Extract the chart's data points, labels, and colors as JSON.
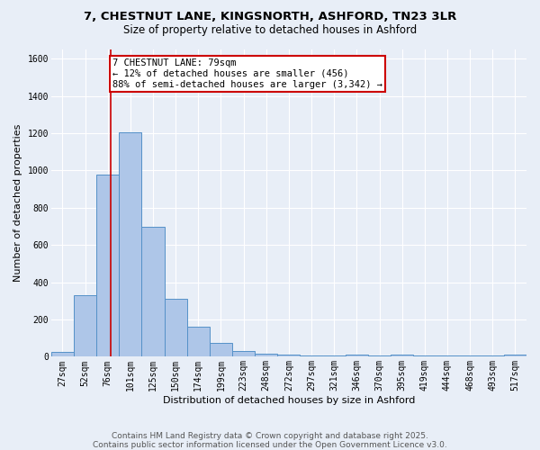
{
  "title_line1": "7, CHESTNUT LANE, KINGSNORTH, ASHFORD, TN23 3LR",
  "title_line2": "Size of property relative to detached houses in Ashford",
  "xlabel": "Distribution of detached houses by size in Ashford",
  "ylabel": "Number of detached properties",
  "categories": [
    "27sqm",
    "52sqm",
    "76sqm",
    "101sqm",
    "125sqm",
    "150sqm",
    "174sqm",
    "199sqm",
    "223sqm",
    "248sqm",
    "272sqm",
    "297sqm",
    "321sqm",
    "346sqm",
    "370sqm",
    "395sqm",
    "419sqm",
    "444sqm",
    "468sqm",
    "493sqm",
    "517sqm"
  ],
  "values": [
    25,
    330,
    980,
    1205,
    700,
    310,
    160,
    75,
    30,
    15,
    10,
    8,
    5,
    10,
    5,
    12,
    5,
    5,
    5,
    5,
    12
  ],
  "bar_color": "#aec6e8",
  "bar_edge_color": "#5591c8",
  "vline_color": "#cc0000",
  "vline_x": 2.15,
  "annotation_text": "7 CHESTNUT LANE: 79sqm\n← 12% of detached houses are smaller (456)\n88% of semi-detached houses are larger (3,342) →",
  "annotation_box_color": "#ffffff",
  "annotation_box_edge_color": "#cc0000",
  "ylim": [
    0,
    1650
  ],
  "yticks": [
    0,
    200,
    400,
    600,
    800,
    1000,
    1200,
    1400,
    1600
  ],
  "background_color": "#e8eef7",
  "plot_bg_color": "#e8eef7",
  "footer_line1": "Contains HM Land Registry data © Crown copyright and database right 2025.",
  "footer_line2": "Contains public sector information licensed under the Open Government Licence v3.0.",
  "title_fontsize": 9.5,
  "subtitle_fontsize": 8.5,
  "axis_label_fontsize": 8,
  "tick_fontsize": 7,
  "annotation_fontsize": 7.5,
  "footer_fontsize": 6.5
}
